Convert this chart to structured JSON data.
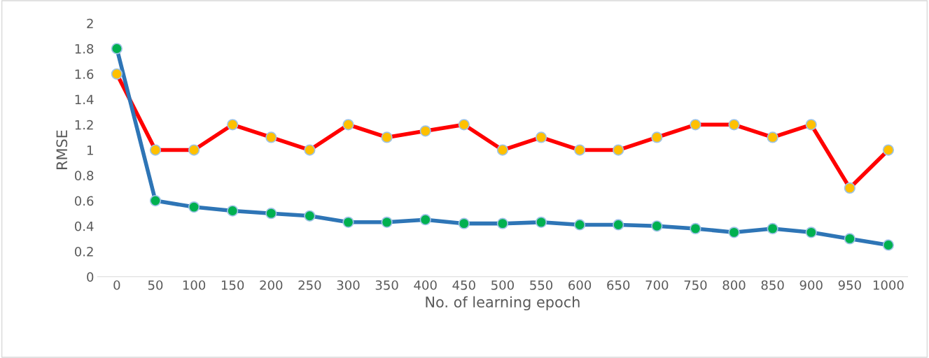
{
  "chart_data": {
    "type": "line",
    "xlabel": "No. of learning epoch",
    "ylabel": "RMSE",
    "categories": [
      "0",
      "50",
      "100",
      "150",
      "200",
      "250",
      "300",
      "350",
      "400",
      "450",
      "500",
      "550",
      "600",
      "650",
      "700",
      "750",
      "800",
      "850",
      "900",
      "950",
      "1000"
    ],
    "series": [
      {
        "color": "#ff0000",
        "colors": [
          "#ffc000",
          "#ffc000",
          "#ffc000",
          "#ffc000",
          "#ffc000",
          "#ffc000",
          "#ffc000",
          "#ffc000",
          "#ffc000",
          "#ffc000",
          "#ffc000",
          "#ffc000",
          "#ffc000",
          "#ffc000",
          "#ffc000",
          "#ffc000",
          "#ffc000",
          "#ffc000",
          "#ffc000",
          "#ffc000",
          "#ffc000"
        ],
        "values": [
          1.6,
          1.0,
          1.0,
          1.2,
          1.1,
          1.0,
          1.2,
          1.1,
          1.15,
          1.2,
          1.0,
          1.1,
          1.0,
          1.0,
          1.1,
          1.2,
          1.2,
          1.1,
          1.2,
          0.7,
          1.0
        ]
      },
      {
        "color": "#2e75b6",
        "colors": [
          "#00b050",
          "#00b050",
          "#00b050",
          "#00b050",
          "#00b050",
          "#00b050",
          "#00b050",
          "#00b050",
          "#00b050",
          "#00b050",
          "#00b050",
          "#00b050",
          "#00b050",
          "#00b050",
          "#00b050",
          "#00b050",
          "#00b050",
          "#00b050",
          "#00b050",
          "#00b050",
          "#00b050"
        ],
        "values": [
          1.8,
          0.6,
          0.55,
          0.52,
          0.5,
          0.48,
          0.43,
          0.43,
          0.45,
          0.42,
          0.42,
          0.43,
          0.41,
          0.41,
          0.4,
          0.38,
          0.35,
          0.38,
          0.35,
          0.3,
          0.25
        ]
      }
    ],
    "ylim": [
      0,
      2
    ],
    "yticks": [
      0,
      0.2,
      0.4,
      0.6,
      0.8,
      1,
      1.2,
      1.4,
      1.6,
      1.8,
      2
    ],
    "grid": false,
    "legend": false,
    "marker": "circle",
    "line_style": "solid"
  }
}
